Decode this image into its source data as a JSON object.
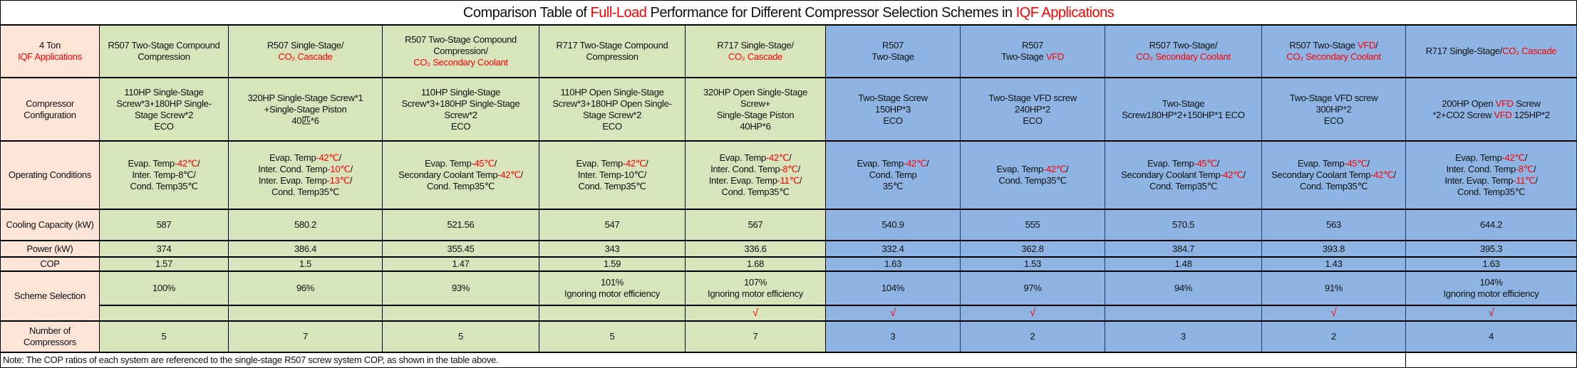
{
  "title": [
    {
      "t": "Comparison Table of "
    },
    {
      "t": "Full-Load",
      "red": true
    },
    {
      "t": " Performance for Different Compressor Selection Schemes in  "
    },
    {
      "t": "IQF Applications",
      "red": true
    }
  ],
  "row_labels": {
    "corner": [
      [
        {
          "t": "4 Ton"
        }
      ],
      [
        {
          "t": "IQF Applications",
          "red": true
        }
      ]
    ],
    "config": "Compressor Configuration",
    "conditions": "Operating Conditions",
    "cooling": "Cooling Capacity (kW)",
    "power": "Power (kW)",
    "cop": "COP",
    "scheme": "Scheme Selection",
    "count": "Number of Compressors"
  },
  "colors": {
    "label_bg": "#fce4d6",
    "green_bg": "#d8e4bc",
    "blue_bg": "#8db4e2",
    "highlight": "#ff0000"
  },
  "check_mark": "√",
  "columns": [
    {
      "group": "green",
      "header": [
        [
          {
            "t": "R507 Two-Stage Compound"
          }
        ],
        [
          {
            "t": "Compression"
          }
        ]
      ],
      "config": [
        [
          {
            "t": "110HP Single-Stage"
          }
        ],
        [
          {
            "t": "Screw*3+180HP Single-"
          }
        ],
        [
          {
            "t": "Stage Screw*2"
          }
        ],
        [
          {
            "t": "ECO"
          }
        ]
      ],
      "conditions": [
        [
          {
            "t": "Evap. Temp"
          },
          {
            "t": "-42℃",
            "red": true
          },
          {
            "t": "/"
          }
        ],
        [
          {
            "t": "Inter. Temp-8℃/"
          }
        ],
        [
          {
            "t": "Cond. Temp35℃"
          }
        ]
      ],
      "cooling": "587",
      "power": "374",
      "cop": "1.57",
      "scheme": [
        "100%"
      ],
      "selected": false,
      "count": "5"
    },
    {
      "group": "green",
      "header": [
        [
          {
            "t": "R507 Single-Stage/"
          }
        ],
        [
          {
            "t": "CO₂ Cascade",
            "red": true
          }
        ]
      ],
      "config": [
        [
          {
            "t": "320HP Single-Stage Screw*1"
          }
        ],
        [
          {
            "t": "+Single-Stage Piston"
          }
        ],
        [
          {
            "t": "40匹*6"
          }
        ]
      ],
      "conditions": [
        [
          {
            "t": "Evap. Temp"
          },
          {
            "t": "-42℃",
            "red": true
          },
          {
            "t": "/"
          }
        ],
        [
          {
            "t": "Inter. Cond. Temp"
          },
          {
            "t": "-10℃",
            "red": true
          },
          {
            "t": "/"
          }
        ],
        [
          {
            "t": "Inter. Evap. Temp"
          },
          {
            "t": "-13℃",
            "red": true
          },
          {
            "t": "/"
          }
        ],
        [
          {
            "t": "Cond. Temp35℃"
          }
        ]
      ],
      "cooling": "580.2",
      "power": "386.4",
      "cop": "1.5",
      "scheme": [
        "96%"
      ],
      "selected": false,
      "count": "7"
    },
    {
      "group": "green",
      "header": [
        [
          {
            "t": "R507 Two-Stage Compound"
          }
        ],
        [
          {
            "t": "Compression/"
          }
        ],
        [
          {
            "t": "CO₂ Secondary Coolant",
            "red": true
          }
        ]
      ],
      "config": [
        [
          {
            "t": "110HP Single-Stage"
          }
        ],
        [
          {
            "t": "Screw*3+180HP Single-Stage"
          }
        ],
        [
          {
            "t": "Screw*2"
          }
        ],
        [
          {
            "t": "ECO"
          }
        ]
      ],
      "conditions": [
        [
          {
            "t": "Evap. Temp"
          },
          {
            "t": "-45℃",
            "red": true
          },
          {
            "t": "/"
          }
        ],
        [
          {
            "t": "Secondary Coolant Temp"
          },
          {
            "t": "-42℃",
            "red": true
          },
          {
            "t": "/"
          }
        ],
        [
          {
            "t": "Cond. Temp35℃"
          }
        ]
      ],
      "cooling": "521.56",
      "power": "355.45",
      "cop": "1.47",
      "scheme": [
        "93%"
      ],
      "selected": false,
      "count": "5"
    },
    {
      "group": "green",
      "header": [
        [
          {
            "t": "R717 Two-Stage Compound"
          }
        ],
        [
          {
            "t": "Compression"
          }
        ]
      ],
      "config": [
        [
          {
            "t": "110HP Open Single-Stage"
          }
        ],
        [
          {
            "t": "Screw*3+180HP Open Single-"
          }
        ],
        [
          {
            "t": "Stage Screw*2"
          }
        ],
        [
          {
            "t": "ECO"
          }
        ]
      ],
      "conditions": [
        [
          {
            "t": "Evap. Temp"
          },
          {
            "t": "-42℃",
            "red": true
          },
          {
            "t": "/"
          }
        ],
        [
          {
            "t": "Inter. Temp-10℃/"
          }
        ],
        [
          {
            "t": "Cond. Temp35℃"
          }
        ]
      ],
      "cooling": "547",
      "power": "343",
      "cop": "1.59",
      "scheme": [
        "101%",
        "Ignoring motor efficiency"
      ],
      "selected": false,
      "count": "5"
    },
    {
      "group": "green",
      "header": [
        [
          {
            "t": "R717 Single-Stage/"
          }
        ],
        [
          {
            "t": "CO₂ Cascade",
            "red": true
          }
        ]
      ],
      "config": [
        [
          {
            "t": "320HP Open Single-Stage"
          }
        ],
        [
          {
            "t": "Screw+"
          }
        ],
        [
          {
            "t": "Single-Stage Piston"
          }
        ],
        [
          {
            "t": "40HP*6"
          }
        ]
      ],
      "conditions": [
        [
          {
            "t": "Evap. Temp"
          },
          {
            "t": "-42℃",
            "red": true
          },
          {
            "t": "/"
          }
        ],
        [
          {
            "t": "Inter. Cond. Temp"
          },
          {
            "t": "-8℃",
            "red": true
          },
          {
            "t": "/"
          }
        ],
        [
          {
            "t": "Inter. Evap. Temp"
          },
          {
            "t": "-11℃",
            "red": true
          },
          {
            "t": "/"
          }
        ],
        [
          {
            "t": "Cond. Temp35℃"
          }
        ]
      ],
      "cooling": "567",
      "power": "336.6",
      "cop": "1.68",
      "scheme": [
        "107%",
        "Ignoring motor efficiency"
      ],
      "selected": true,
      "count": "7"
    },
    {
      "group": "blue",
      "header": [
        [
          {
            "t": "R507"
          }
        ],
        [
          {
            "t": "Two-Stage"
          }
        ]
      ],
      "config": [
        [
          {
            "t": "Two-Stage Screw"
          }
        ],
        [
          {
            "t": "150HP*3"
          }
        ],
        [
          {
            "t": "ECO"
          }
        ]
      ],
      "conditions": [
        [
          {
            "t": "Evap. Temp"
          },
          {
            "t": "-42℃",
            "red": true
          },
          {
            "t": "/"
          }
        ],
        [
          {
            "t": "Cond. Temp"
          }
        ],
        [
          {
            "t": "35℃"
          }
        ]
      ],
      "cooling": "540.9",
      "power": "332.4",
      "cop": "1.63",
      "scheme": [
        "104%"
      ],
      "selected": true,
      "count": "3"
    },
    {
      "group": "blue",
      "header": [
        [
          {
            "t": "R507"
          }
        ],
        [
          {
            "t": "Two-Stage "
          },
          {
            "t": "VFD",
            "red": true
          }
        ]
      ],
      "config": [
        [
          {
            "t": "Two-Stage VFD screw"
          }
        ],
        [
          {
            "t": "240HP*2"
          }
        ],
        [
          {
            "t": "ECO"
          }
        ]
      ],
      "conditions": [
        [
          {
            "t": "Evap. Temp"
          },
          {
            "t": "-42℃",
            "red": true
          },
          {
            "t": "/"
          }
        ],
        [
          {
            "t": "Cond. Temp35℃"
          }
        ]
      ],
      "cooling": "555",
      "power": "362.8",
      "cop": "1.53",
      "scheme": [
        "97%"
      ],
      "selected": true,
      "count": "2"
    },
    {
      "group": "blue",
      "header": [
        [
          {
            "t": "R507 Two-Stage/"
          }
        ],
        [
          {
            "t": "CO₂ Secondary Coolant",
            "red": true
          }
        ]
      ],
      "config": [
        [
          {
            "t": "Two-Stage"
          }
        ],
        [
          {
            "t": "Screw180HP*2+150HP*1 ECO"
          }
        ]
      ],
      "conditions": [
        [
          {
            "t": "Evap. Temp"
          },
          {
            "t": "-45℃",
            "red": true
          },
          {
            "t": "/"
          }
        ],
        [
          {
            "t": "Secondary Coolant Temp"
          },
          {
            "t": "-42℃",
            "red": true
          },
          {
            "t": "/"
          }
        ],
        [
          {
            "t": "Cond. Temp35℃"
          }
        ]
      ],
      "cooling": "570.5",
      "power": "384.7",
      "cop": "1.48",
      "scheme": [
        "94%"
      ],
      "selected": false,
      "count": "3"
    },
    {
      "group": "blue",
      "header": [
        [
          {
            "t": "R507 Two-Stage "
          },
          {
            "t": "VFD",
            "red": true
          },
          {
            "t": "/"
          }
        ],
        [
          {
            "t": "CO₂ Secondary Coolant",
            "red": true
          }
        ]
      ],
      "config": [
        [
          {
            "t": "Two-Stage VFD screw"
          }
        ],
        [
          {
            "t": "300HP*2"
          }
        ],
        [
          {
            "t": "ECO"
          }
        ]
      ],
      "conditions": [
        [
          {
            "t": "Evap. Temp"
          },
          {
            "t": "-45℃",
            "red": true
          },
          {
            "t": "/"
          }
        ],
        [
          {
            "t": "Secondary Coolant Temp"
          },
          {
            "t": "-42℃",
            "red": true
          },
          {
            "t": "/"
          }
        ],
        [
          {
            "t": "Cond. Temp35℃"
          }
        ]
      ],
      "cooling": "563",
      "power": "393.8",
      "cop": "1.43",
      "scheme": [
        "91%"
      ],
      "selected": true,
      "count": "2"
    },
    {
      "group": "blue",
      "header": [
        [
          {
            "t": "R717 Single-Stage/"
          },
          {
            "t": "CO₂ Cascade",
            "red": true
          }
        ]
      ],
      "config": [
        [
          {
            "t": "200HP Open "
          },
          {
            "t": "VFD",
            "red": true
          },
          {
            "t": " Screw"
          }
        ],
        [
          {
            "t": "*2+CO2 Screw "
          },
          {
            "t": "VFD",
            "red": true
          },
          {
            "t": " 125HP*2"
          }
        ]
      ],
      "conditions": [
        [
          {
            "t": "Evap. Temp"
          },
          {
            "t": "-42℃",
            "red": true
          },
          {
            "t": "/"
          }
        ],
        [
          {
            "t": "Inter. Cond. Temp"
          },
          {
            "t": "-8℃",
            "red": true
          },
          {
            "t": "/"
          }
        ],
        [
          {
            "t": "Inter. Evap. Temp"
          },
          {
            "t": "-11℃",
            "red": true
          },
          {
            "t": "/"
          }
        ],
        [
          {
            "t": "Cond. Temp35℃"
          }
        ]
      ],
      "cooling": "644.2",
      "power": "395.3",
      "cop": "1.63",
      "scheme": [
        "104%",
        "Ignoring motor efficiency"
      ],
      "selected": true,
      "count": "4"
    }
  ],
  "note": "Note: The COP ratios of each system are referenced to the single-stage R507 screw system COP, as shown in the table above."
}
